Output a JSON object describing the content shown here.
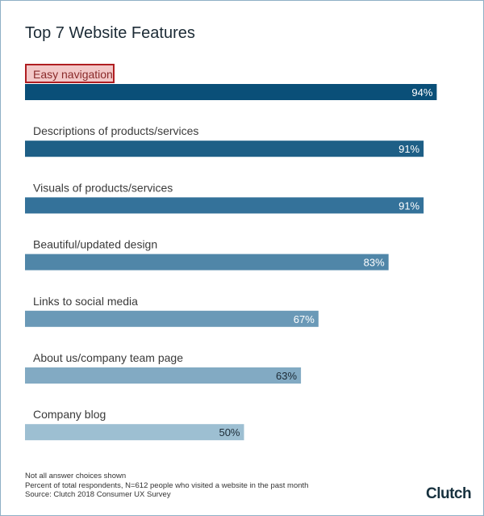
{
  "chart_data": {
    "type": "bar",
    "title": "Top 7 Website Features",
    "categories": [
      "Easy navigation",
      "Descriptions of products/services",
      "Visuals of products/services",
      "Beautiful/updated design",
      "Links to social media",
      "About us/company team page",
      "Company blog"
    ],
    "values": [
      94,
      91,
      91,
      83,
      67,
      63,
      50
    ],
    "value_labels": [
      "94%",
      "91%",
      "91%",
      "83%",
      "67%",
      "63%",
      "50%"
    ],
    "xlim": [
      0,
      100
    ],
    "highlighted_category": "Easy navigation",
    "bar_colors": [
      "#0a4f78",
      "#1e5f86",
      "#34729a",
      "#5086a8",
      "#6a99b7",
      "#82aac3",
      "#9dbfd2"
    ],
    "value_label_colors": [
      "#ffffff",
      "#ffffff",
      "#ffffff",
      "#ffffff",
      "#ffffff",
      "#1c2b36",
      "#1c2b36"
    ],
    "highlight_color": "#b01e22",
    "highlight_fill": "#f3c8c8"
  },
  "footnotes": [
    "Not all answer choices shown",
    "Percent of total respondents, N=612 people who visited a website in the past month",
    "Source: Clutch 2018 Consumer UX Survey"
  ],
  "logo": {
    "text": "Clutch",
    "accent_color": "#e2402f"
  }
}
